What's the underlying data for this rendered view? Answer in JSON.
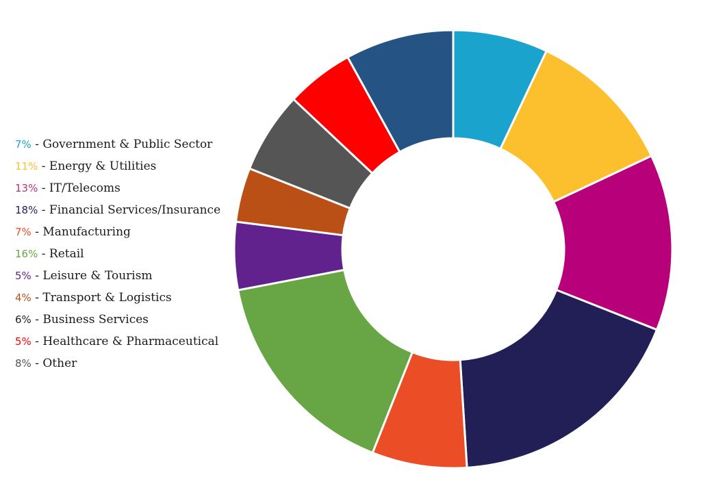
{
  "chart_data": {
    "type": "pie",
    "donut": true,
    "legend_position": "left",
    "separator": " - ",
    "slices": [
      {
        "label": "Government & Public Sector",
        "pct_text": "7%",
        "value": 7,
        "color": "#1aa3cc"
      },
      {
        "label": "Energy & Utilities",
        "pct_text": "11%",
        "value": 11,
        "color": "#fcbf2d"
      },
      {
        "label": "IT/Telecoms",
        "pct_text": "13%",
        "value": 13,
        "color": "#b8007a"
      },
      {
        "label": "Financial Services/Insurance",
        "pct_text": "18%",
        "value": 18,
        "color": "#221f56"
      },
      {
        "label": "Manufacturing",
        "pct_text": "7%",
        "value": 7,
        "color": "#eb4d27"
      },
      {
        "label": "Retail",
        "pct_text": "16%",
        "value": 16,
        "color": "#68a645"
      },
      {
        "label": "Leisure & Tourism",
        "pct_text": "5%",
        "value": 5,
        "color": "#62228e"
      },
      {
        "label": "Transport & Logistics",
        "pct_text": "4%",
        "value": 4,
        "color": "#bb5017"
      },
      {
        "label": "Business Services",
        "pct_text": "6%",
        "value": 6,
        "color": "#555555"
      },
      {
        "label": "Healthcare & Pharmaceutical",
        "pct_text": "5%",
        "value": 5,
        "color": "#ff0000"
      },
      {
        "label": "Other",
        "pct_text": "8%",
        "value": 8,
        "color": "#245384"
      }
    ],
    "legend_pct_colors": [
      "#1aa3cc",
      "#fcbf2d",
      "#b8307a",
      "#221f56",
      "#eb4d27",
      "#68a645",
      "#62228e",
      "#bb5017",
      "#222222",
      "#ff0000",
      "#555555"
    ]
  }
}
